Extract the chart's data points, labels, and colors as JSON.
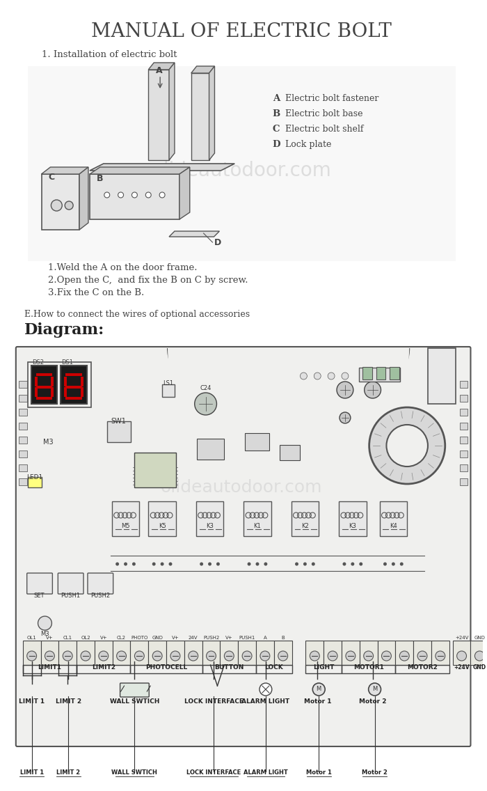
{
  "title": "MANUAL OF ELECTRIC BOLT",
  "subtitle": "1. Installation of electric bolt",
  "section_e": "E.How to connect the wires of optional accessories",
  "diagram_title": "Diagram:",
  "bg_color": "#ffffff",
  "border_color": "#555555",
  "text_color": "#333333",
  "instructions": [
    "1.Weld the A on the door frame.",
    "2.Open the C,  and fix the B on C by screw.",
    "3.Fix the C on the B."
  ],
  "legend_items": [
    [
      "A",
      "Electric bolt fastener"
    ],
    [
      "B",
      "Electric bolt base"
    ],
    [
      "C",
      "Electric bolt shelf"
    ],
    [
      "D",
      "Lock plate"
    ]
  ],
  "terminal_labels_top": [
    "OL1",
    "V+",
    "CL1",
    "OL2",
    "V+",
    "CL2",
    "PHOTO",
    "GND",
    "V+",
    "24V",
    "PUSH2",
    "V+",
    "PUSH1",
    "A",
    "B"
  ],
  "terminal_groups": [
    {
      "name": "LIMIT1",
      "cols": 3
    },
    {
      "name": "LIMIT2",
      "cols": 3
    },
    {
      "name": "PHOTOCELL",
      "cols": 4
    },
    {
      "name": "BUTTON",
      "cols": 3
    },
    {
      "name": "LOCK",
      "cols": 2
    }
  ],
  "right_terminal_groups": [
    {
      "name": "LIGHT",
      "cols": 2
    },
    {
      "name": "MOTOR1",
      "cols": 3
    },
    {
      "name": "MOTOR2",
      "cols": 3
    }
  ],
  "bottom_labels": [
    "LIMIT 1",
    "LIMIT 2",
    "WALL SWTICH",
    "LOCK INTERFACE",
    "ALARM LIGHT",
    "Motor 1",
    "Motor 2"
  ],
  "relay_labels": [
    "M5",
    "K5",
    "K3",
    "K1",
    "K2",
    "K3",
    "K4"
  ],
  "switch_labels": [
    "SW1"
  ],
  "component_labels": [
    "LED1",
    "M3",
    "M3",
    "SET",
    "PUSH1",
    "PUSH2"
  ]
}
